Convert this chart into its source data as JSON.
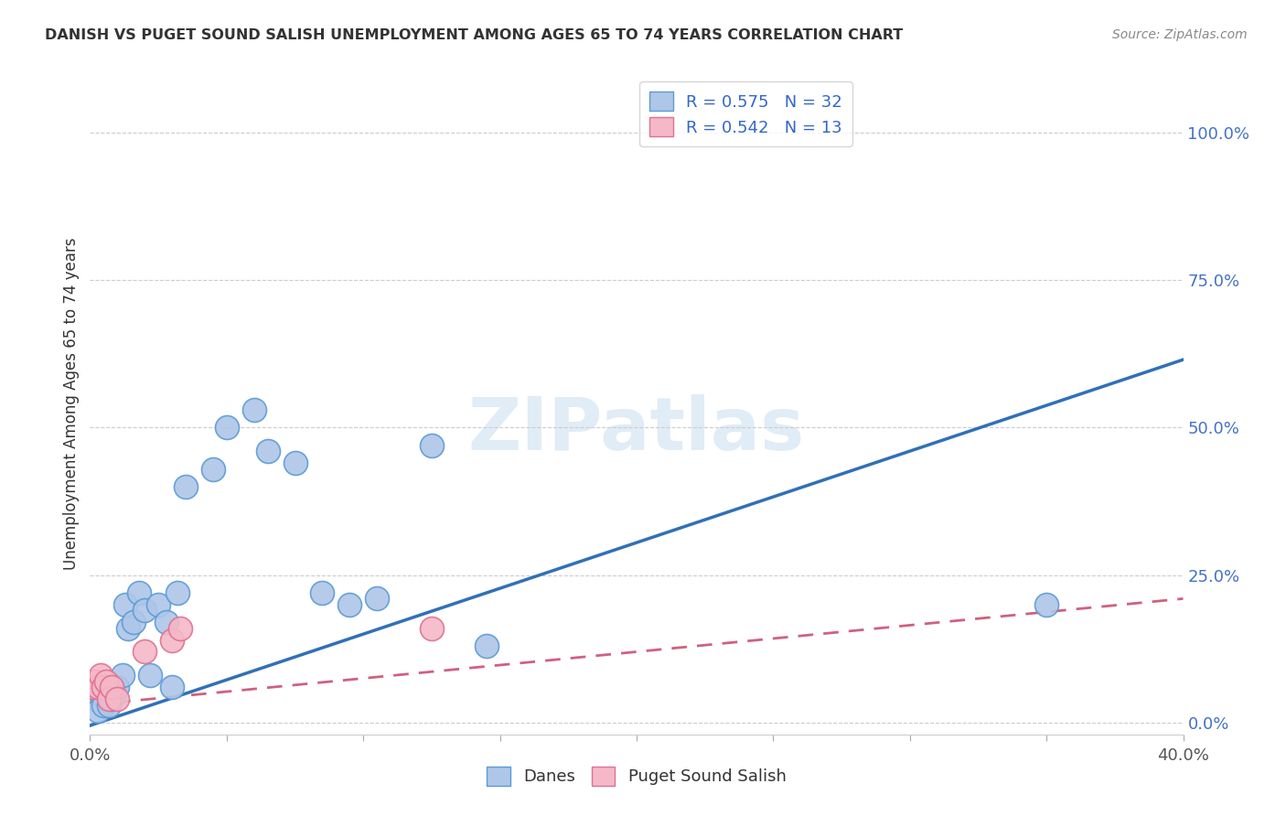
{
  "title": "DANISH VS PUGET SOUND SALISH UNEMPLOYMENT AMONG AGES 65 TO 74 YEARS CORRELATION CHART",
  "source": "Source: ZipAtlas.com",
  "ylabel": "Unemployment Among Ages 65 to 74 years",
  "xlim": [
    0.0,
    0.4
  ],
  "ylim": [
    -0.02,
    1.1
  ],
  "ytick_positions": [
    0.0,
    0.25,
    0.5,
    0.75,
    1.0
  ],
  "ytick_labels": [
    "0.0%",
    "25.0%",
    "50.0%",
    "75.0%",
    "100.0%"
  ],
  "danes_color": "#aec6e8",
  "danes_edge_color": "#5b9bd5",
  "puget_color": "#f4b8c8",
  "puget_edge_color": "#e07090",
  "danes_R": "0.575",
  "danes_N": "32",
  "puget_R": "0.542",
  "puget_N": "13",
  "danes_line_color": "#3070b8",
  "puget_line_color": "#d06080",
  "watermark": "ZIPatlas",
  "danes_x": [
    0.002,
    0.003,
    0.004,
    0.005,
    0.006,
    0.007,
    0.008,
    0.009,
    0.01,
    0.012,
    0.013,
    0.014,
    0.016,
    0.018,
    0.02,
    0.022,
    0.025,
    0.028,
    0.03,
    0.032,
    0.035,
    0.045,
    0.05,
    0.06,
    0.065,
    0.075,
    0.085,
    0.095,
    0.105,
    0.125,
    0.145,
    0.35
  ],
  "danes_y": [
    0.04,
    0.02,
    0.05,
    0.03,
    0.06,
    0.03,
    0.04,
    0.05,
    0.06,
    0.08,
    0.2,
    0.16,
    0.17,
    0.22,
    0.19,
    0.08,
    0.2,
    0.17,
    0.06,
    0.22,
    0.4,
    0.43,
    0.5,
    0.53,
    0.46,
    0.44,
    0.22,
    0.2,
    0.21,
    0.47,
    0.13,
    0.2
  ],
  "puget_x": [
    0.001,
    0.002,
    0.003,
    0.004,
    0.005,
    0.006,
    0.007,
    0.008,
    0.01,
    0.02,
    0.03,
    0.033,
    0.125
  ],
  "puget_y": [
    0.06,
    0.07,
    0.06,
    0.08,
    0.06,
    0.07,
    0.04,
    0.06,
    0.04,
    0.12,
    0.14,
    0.16,
    0.16
  ]
}
